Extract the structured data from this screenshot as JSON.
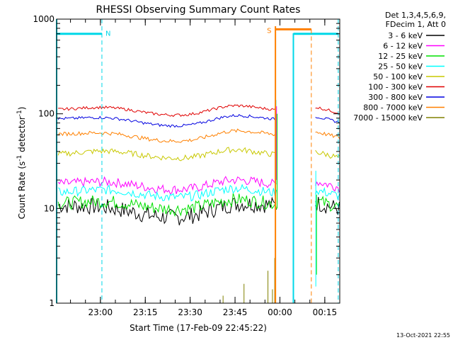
{
  "chart_data": {
    "type": "line",
    "title": "RHESSI Observing Summary Count Rates",
    "xlabel": "Start Time (17-Feb-09 22:45:22)",
    "ylabel_main": "Count Rate (s",
    "ylabel_sup1": "-1",
    "ylabel_mid": " detector",
    "ylabel_sup2": "-1",
    "ylabel_end": ")",
    "yscale": "log",
    "ylim": [
      1,
      1000
    ],
    "xlim": [
      "22:45:22",
      "00:20:00"
    ],
    "yticks": [
      {
        "value": 1,
        "label": "1"
      },
      {
        "value": 10,
        "label": "10"
      },
      {
        "value": 100,
        "label": "100"
      },
      {
        "value": 1000,
        "label": "1000"
      }
    ],
    "xticks": [
      "23:00",
      "23:15",
      "23:30",
      "23:45",
      "00:00",
      "00:15"
    ],
    "legend_header": [
      "Det 1,3,4,5,6,9,",
      "FDecim 1, Att 0"
    ],
    "legend_placement": "right",
    "series": [
      {
        "name": "3 - 6 keV",
        "color": "#000000"
      },
      {
        "name": "6 - 12 keV",
        "color": "#ff00ff"
      },
      {
        "name": "12 - 25 keV",
        "color": "#00e000"
      },
      {
        "name": "25 - 50 keV",
        "color": "#00ffff"
      },
      {
        "name": "50 - 100 keV",
        "color": "#c8c800"
      },
      {
        "name": "100 - 300 keV",
        "color": "#e00000"
      },
      {
        "name": "300 - 800 keV",
        "color": "#0000e0"
      },
      {
        "name": "800 - 7000 keV",
        "color": "#ff8000"
      },
      {
        "name": "7000 - 15000 keV",
        "color": "#808000"
      }
    ],
    "annotations": [
      {
        "label": "N",
        "color": "#00d8e8"
      },
      {
        "label": "S",
        "color": "#ff8000"
      }
    ],
    "timestamp": "13-Oct-2021 22:55"
  }
}
